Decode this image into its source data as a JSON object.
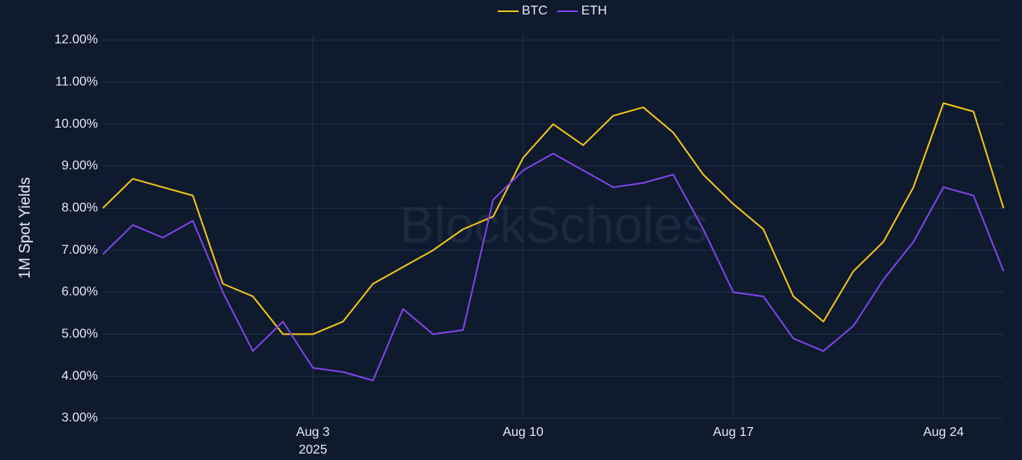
{
  "chart_data": {
    "type": "line",
    "y_label": "1M Spot Yields",
    "watermark": "BlockScholes",
    "legend": "top",
    "grid": true,
    "x": [
      "2025-07-27",
      "2025-07-28",
      "2025-07-29",
      "2025-07-30",
      "2025-07-31",
      "2025-08-01",
      "2025-08-02",
      "2025-08-03",
      "2025-08-04",
      "2025-08-05",
      "2025-08-06",
      "2025-08-07",
      "2025-08-08",
      "2025-08-09",
      "2025-08-10",
      "2025-08-11",
      "2025-08-12",
      "2025-08-13",
      "2025-08-14",
      "2025-08-15",
      "2025-08-16",
      "2025-08-17",
      "2025-08-18",
      "2025-08-19",
      "2025-08-20",
      "2025-08-21",
      "2025-08-22",
      "2025-08-23",
      "2025-08-24",
      "2025-08-25",
      "2025-08-26"
    ],
    "xlim": [
      "2025-07-27",
      "2025-08-26"
    ],
    "xticks": [
      {
        "value": "2025-08-03",
        "label": "Aug 3",
        "sublabel": "2025"
      },
      {
        "value": "2025-08-10",
        "label": "Aug 10"
      },
      {
        "value": "2025-08-17",
        "label": "Aug 17"
      },
      {
        "value": "2025-08-24",
        "label": "Aug 24"
      }
    ],
    "ylim": [
      3,
      12
    ],
    "yticks": [
      {
        "value": 3,
        "label": "3.00%"
      },
      {
        "value": 4,
        "label": "4.00%"
      },
      {
        "value": 5,
        "label": "5.00%"
      },
      {
        "value": 6,
        "label": "6.00%"
      },
      {
        "value": 7,
        "label": "7.00%"
      },
      {
        "value": 8,
        "label": "8.00%"
      },
      {
        "value": 9,
        "label": "9.00%"
      },
      {
        "value": 10,
        "label": "10.00%"
      },
      {
        "value": 11,
        "label": "11.00%"
      },
      {
        "value": 12,
        "label": "12.00%"
      }
    ],
    "series": [
      {
        "name": "BTC",
        "color": "#f0c419",
        "values": [
          8.0,
          8.7,
          8.5,
          8.3,
          6.2,
          5.9,
          5.0,
          5.0,
          5.3,
          6.2,
          6.6,
          7.0,
          7.5,
          7.8,
          9.2,
          10.0,
          9.5,
          10.2,
          10.4,
          9.8,
          8.8,
          8.1,
          7.5,
          5.9,
          5.3,
          6.5,
          7.2,
          8.5,
          10.5,
          10.3,
          8.0
        ]
      },
      {
        "name": "ETH",
        "color": "#7c45e6",
        "values": [
          6.9,
          7.6,
          7.3,
          7.7,
          6.0,
          4.6,
          5.3,
          4.2,
          4.1,
          3.9,
          5.6,
          5.0,
          5.1,
          8.2,
          8.9,
          9.3,
          8.9,
          8.5,
          8.6,
          8.8,
          7.5,
          6.0,
          5.9,
          4.9,
          4.6,
          5.2,
          6.3,
          7.2,
          8.5,
          8.3,
          6.5
        ]
      }
    ]
  }
}
